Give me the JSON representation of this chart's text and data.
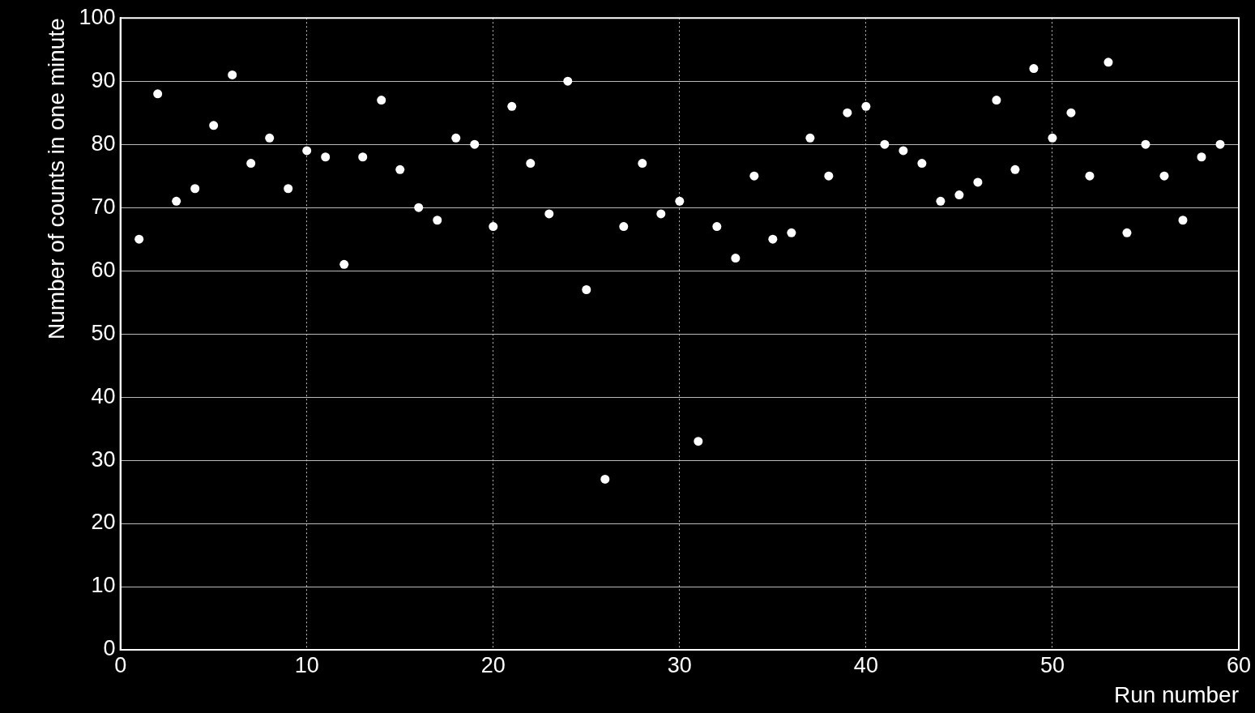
{
  "chart_data": {
    "type": "scatter",
    "xlabel": "Run number",
    "ylabel": "Number of counts in one minute",
    "x": [
      1,
      2,
      3,
      4,
      5,
      6,
      7,
      8,
      9,
      10,
      11,
      12,
      13,
      14,
      15,
      16,
      17,
      18,
      19,
      20,
      21,
      22,
      23,
      24,
      25,
      26,
      27,
      28,
      29,
      30,
      31,
      32,
      33,
      34,
      35,
      36,
      37,
      38,
      39,
      40,
      41,
      42,
      43,
      44,
      45,
      46,
      47,
      48,
      49,
      50,
      51,
      52,
      53,
      54,
      55,
      56,
      57,
      58,
      59
    ],
    "series": [
      {
        "color": "#ffffff",
        "values": [
          65,
          88,
          71,
          73,
          83,
          91,
          77,
          81,
          73,
          79,
          78,
          61,
          78,
          87,
          76,
          70,
          68,
          81,
          80,
          67,
          86,
          77,
          69,
          90,
          57,
          27,
          67,
          77,
          69,
          71,
          33,
          67,
          62,
          75,
          65,
          66,
          81,
          75,
          85,
          86,
          80,
          79,
          77,
          71,
          72,
          74,
          87,
          76,
          92,
          81,
          85,
          75,
          93,
          66,
          80,
          75,
          68,
          78,
          80
        ]
      }
    ],
    "xlim": [
      0,
      60
    ],
    "xticks": [
      0,
      10,
      20,
      30,
      40,
      50,
      60
    ],
    "ylim": [
      0,
      100
    ],
    "yticks": [
      0,
      10,
      20,
      30,
      40,
      50,
      60,
      70,
      80,
      90,
      100
    ],
    "grid": true,
    "legend": false,
    "marker": "circle"
  }
}
